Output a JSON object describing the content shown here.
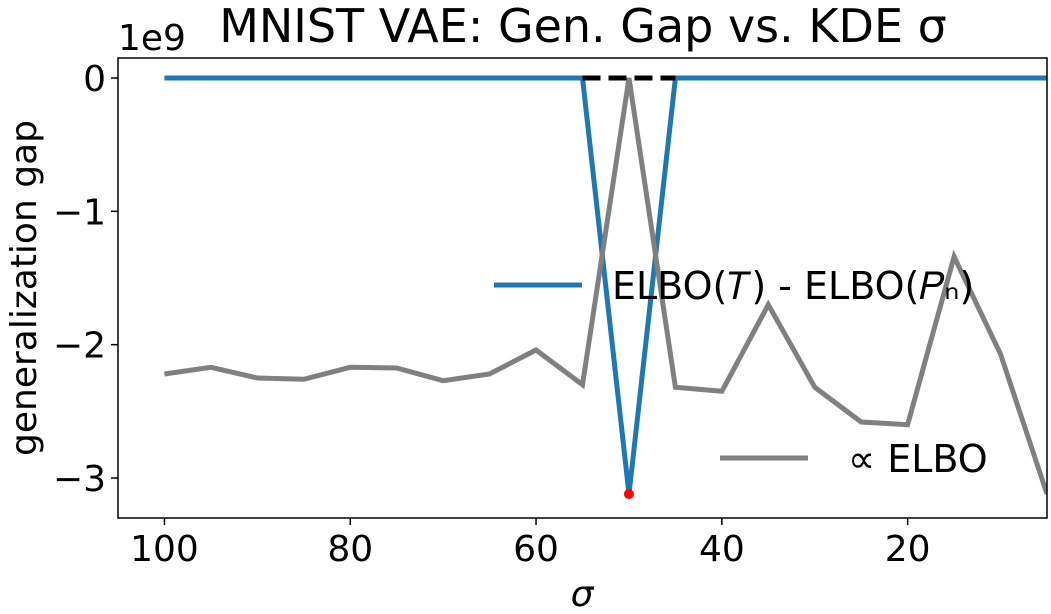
{
  "chart_data": {
    "type": "line",
    "title": "MNIST VAE: Gen. Gap vs. KDE σ",
    "xlabel": "σ",
    "ylabel": "generalization gap",
    "y_offset_label": "1e9",
    "x": [
      100,
      95,
      90,
      85,
      80,
      75,
      70,
      65,
      60,
      55,
      50,
      45,
      40,
      35,
      30,
      25,
      20,
      15,
      10,
      5
    ],
    "xlim": [
      105,
      5
    ],
    "x_axis_inverted": true,
    "ylim": [
      -3.3,
      0.15
    ],
    "y_unit_multiplier": 1000000000,
    "x_ticks": [
      "100",
      "80",
      "60",
      "40",
      "20"
    ],
    "x_tick_values": [
      100,
      80,
      60,
      40,
      20
    ],
    "y_ticks": [
      "0",
      "−1",
      "−2",
      "−3"
    ],
    "y_tick_values": [
      0,
      -1,
      -2,
      -3
    ],
    "grid": false,
    "series": [
      {
        "name": "ELBO(T) - ELBO(Pn)",
        "legend_label": "ELBO(𝑇) - ELBO(𝑃ₙ)",
        "color": "#1f77b4",
        "values": [
          0,
          0,
          0,
          0,
          0,
          0,
          0,
          0,
          0,
          0,
          -3.12,
          0,
          0,
          0,
          0,
          0,
          0,
          0,
          0,
          0
        ]
      },
      {
        "name": "∝ ELBO",
        "legend_label": "∝ ELBO",
        "color": "#808080",
        "values": [
          -2.22,
          -2.17,
          -2.25,
          -2.26,
          -2.17,
          -2.175,
          -2.27,
          -2.22,
          -2.04,
          -2.3,
          0.0,
          -2.32,
          -2.35,
          -1.7,
          -2.32,
          -2.58,
          -2.6,
          -1.34,
          -2.07,
          -3.12
        ]
      }
    ],
    "reference_line": {
      "color": "#000000",
      "style": "dashed",
      "x_range": [
        55,
        45
      ],
      "y": 0
    },
    "marker": {
      "color": "#ff0000",
      "x": 50,
      "y": -3.12
    },
    "legend_placement": "right"
  }
}
